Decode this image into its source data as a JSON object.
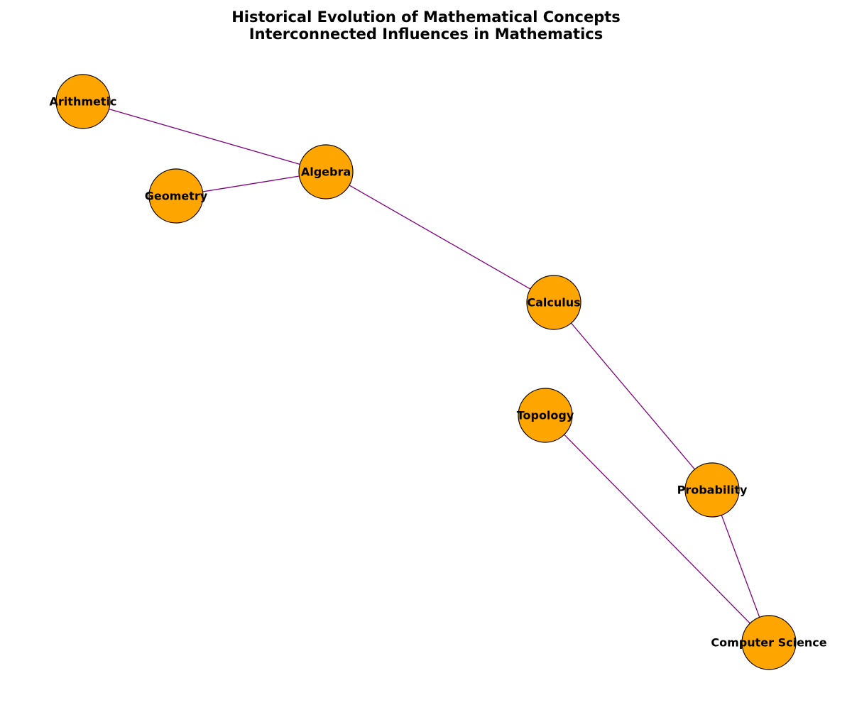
{
  "title": {
    "line1": "Historical Evolution of Mathematical Concepts",
    "line2": "Interconnected Influences in Mathematics"
  },
  "colors": {
    "node_fill": "#FFA500",
    "node_stroke": "#000000",
    "edge": "#800080"
  },
  "nodes": [
    {
      "id": "arithmetic",
      "label": "Arithmetic"
    },
    {
      "id": "geometry",
      "label": "Geometry"
    },
    {
      "id": "algebra",
      "label": "Algebra"
    },
    {
      "id": "calculus",
      "label": "Calculus"
    },
    {
      "id": "topology",
      "label": "Topology"
    },
    {
      "id": "probability",
      "label": "Probability"
    },
    {
      "id": "computer-science",
      "label": "Computer Science"
    }
  ],
  "edges": [
    {
      "source": "arithmetic",
      "target": "algebra"
    },
    {
      "source": "geometry",
      "target": "algebra"
    },
    {
      "source": "algebra",
      "target": "calculus"
    },
    {
      "source": "calculus",
      "target": "probability"
    },
    {
      "source": "probability",
      "target": "computer-science"
    },
    {
      "source": "topology",
      "target": "computer-science"
    }
  ]
}
